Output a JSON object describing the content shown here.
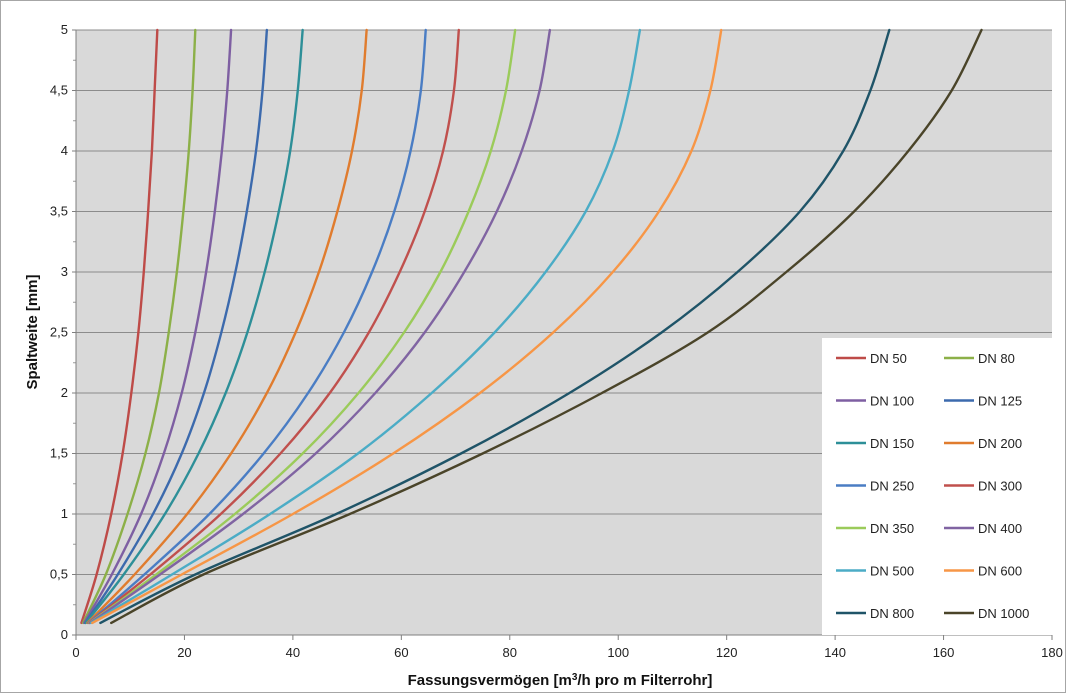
{
  "chart_data": {
    "type": "line",
    "xlabel_main": "Fassungsvermögen [m",
    "xlabel_sup": "3",
    "xlabel_rest": "/h pro m Filterrohr]",
    "ylabel": "Spaltweite [mm]",
    "xlim": [
      0,
      180
    ],
    "ylim": [
      0,
      5
    ],
    "x_ticks": [
      "0",
      "20",
      "40",
      "60",
      "80",
      "100",
      "120",
      "140",
      "160",
      "180"
    ],
    "y_ticks": [
      "0",
      "0,5",
      "1",
      "1,5",
      "2",
      "2,5",
      "3",
      "3,5",
      "4",
      "4,5",
      "5"
    ],
    "grid": true,
    "plot_background": "#d9d9d9",
    "legend_position": "bottom-right",
    "y_values": [
      0.1,
      0.5,
      1,
      1.5,
      2,
      2.5,
      3,
      3.5,
      4,
      4.5,
      5
    ],
    "series": [
      {
        "name": "DN 50",
        "color": "#be4b48",
        "x": [
          1.0,
          3.8,
          6.5,
          8.6,
          10.2,
          11.5,
          12.5,
          13.3,
          14.0,
          14.5,
          15.0
        ]
      },
      {
        "name": "DN 80",
        "color": "#8cb048",
        "x": [
          1.3,
          5.5,
          9.5,
          12.8,
          15.3,
          17.1,
          18.6,
          19.8,
          20.8,
          21.5,
          22.0
        ]
      },
      {
        "name": "DN 100",
        "color": "#7e5fa2",
        "x": [
          1.5,
          6.6,
          12.0,
          16.2,
          19.5,
          22.0,
          24.0,
          25.6,
          26.9,
          27.9,
          28.6
        ]
      },
      {
        "name": "DN 125",
        "color": "#3c6aad",
        "x": [
          1.7,
          7.7,
          14.2,
          19.5,
          23.6,
          26.8,
          29.4,
          31.5,
          33.2,
          34.4,
          35.2
        ]
      },
      {
        "name": "DN 150",
        "color": "#2d8f98",
        "x": [
          1.8,
          8.8,
          16.4,
          22.6,
          27.6,
          31.6,
          34.8,
          37.4,
          39.5,
          40.9,
          41.8
        ]
      },
      {
        "name": "DN 200",
        "color": "#e07c2e",
        "x": [
          2.1,
          10.8,
          20.5,
          28.6,
          35.2,
          40.5,
          44.8,
          48.2,
          50.9,
          52.7,
          53.6
        ]
      },
      {
        "name": "DN 250",
        "color": "#4a7dc4",
        "x": [
          2.3,
          12.6,
          24.6,
          34.6,
          42.8,
          49.4,
          54.6,
          58.7,
          61.7,
          63.6,
          64.5
        ]
      },
      {
        "name": "DN 300",
        "color": "#c0504d",
        "x": [
          2.4,
          13.7,
          26.7,
          37.7,
          46.8,
          54.0,
          59.7,
          64.3,
          67.7,
          69.7,
          70.6
        ]
      },
      {
        "name": "DN 350",
        "color": "#9bcb5a",
        "x": [
          2.5,
          14.8,
          29.3,
          41.8,
          52.1,
          60.5,
          67.2,
          72.4,
          76.5,
          79.3,
          81.0
        ]
      },
      {
        "name": "DN 400",
        "color": "#8064a2",
        "x": [
          2.6,
          15.5,
          30.8,
          44.2,
          55.2,
          64.3,
          71.6,
          77.6,
          82.2,
          85.5,
          87.4
        ]
      },
      {
        "name": "DN 500",
        "color": "#4bacc6",
        "x": [
          2.8,
          17.7,
          35.8,
          52.0,
          65.6,
          77.2,
          86.6,
          94.0,
          99.0,
          102.0,
          104.0
        ]
      },
      {
        "name": "DN 600",
        "color": "#f79646",
        "x": [
          3.0,
          19.5,
          40.0,
          58.5,
          74.5,
          88.0,
          99.0,
          107.5,
          113.5,
          117.0,
          119.0
        ]
      },
      {
        "name": "DN 800",
        "color": "#1f5468",
        "x": [
          4.5,
          22.0,
          48.0,
          71.0,
          91.0,
          108.0,
          122.0,
          133.5,
          141.5,
          146.5,
          150.0
        ]
      },
      {
        "name": "DN 1000",
        "color": "#4a4429",
        "x": [
          6.5,
          23.5,
          50.5,
          75.0,
          97.0,
          116.5,
          131.0,
          143.5,
          153.5,
          161.5,
          167.0
        ]
      }
    ]
  }
}
